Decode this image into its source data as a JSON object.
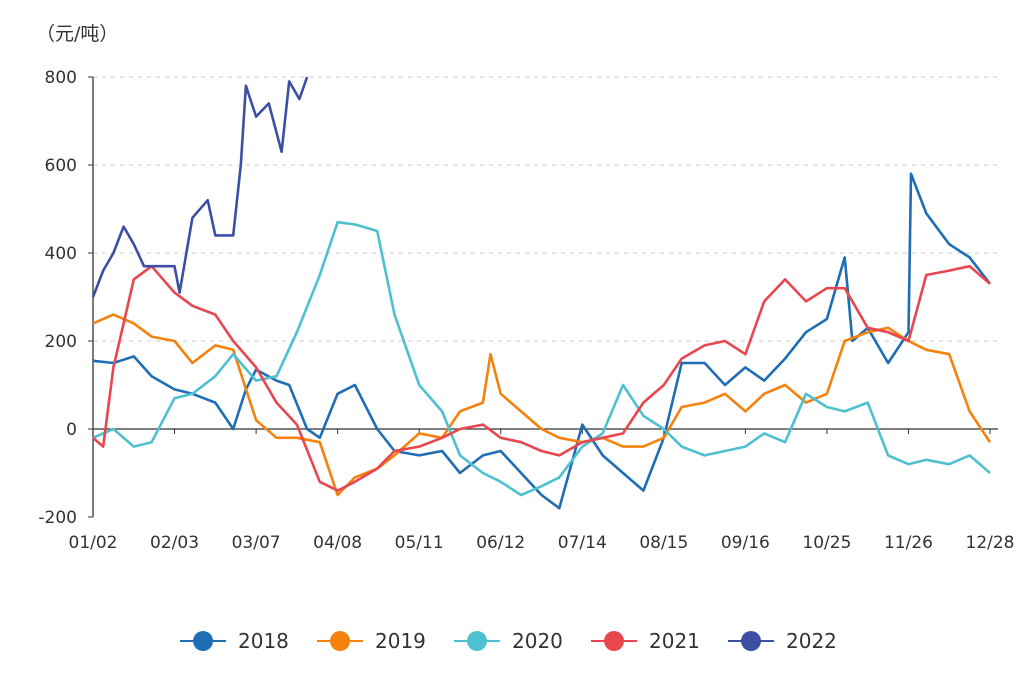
{
  "chart_data": {
    "type": "line",
    "ylabel": "（元/吨）",
    "ylim": [
      -200,
      800
    ],
    "yticks": [
      -200,
      0,
      200,
      400,
      600,
      800
    ],
    "xticks": [
      "01/02",
      "02/03",
      "03/07",
      "04/08",
      "05/11",
      "06/12",
      "07/14",
      "08/15",
      "09/16",
      "10/25",
      "11/26",
      "12/28"
    ],
    "grid": "horizontal dashed",
    "legend": "bottom",
    "series": [
      {
        "name": "2018",
        "color": "#1f6db5",
        "points": [
          [
            "01/02",
            155
          ],
          [
            "01/10",
            150
          ],
          [
            "01/18",
            165
          ],
          [
            "01/25",
            120
          ],
          [
            "02/03",
            90
          ],
          [
            "02/10",
            80
          ],
          [
            "02/19",
            60
          ],
          [
            "02/26",
            0
          ],
          [
            "03/03",
            90
          ],
          [
            "03/07",
            135
          ],
          [
            "03/15",
            110
          ],
          [
            "03/20",
            100
          ],
          [
            "03/27",
            0
          ],
          [
            "04/01",
            -20
          ],
          [
            "04/08",
            80
          ],
          [
            "04/15",
            100
          ],
          [
            "04/24",
            0
          ],
          [
            "05/01",
            -50
          ],
          [
            "05/11",
            -60
          ],
          [
            "05/20",
            -50
          ],
          [
            "05/27",
            -100
          ],
          [
            "06/05",
            -60
          ],
          [
            "06/12",
            -50
          ],
          [
            "06/20",
            -100
          ],
          [
            "06/28",
            -150
          ],
          [
            "07/05",
            -180
          ],
          [
            "07/14",
            10
          ],
          [
            "07/22",
            -60
          ],
          [
            "07/30",
            -100
          ],
          [
            "08/07",
            -140
          ],
          [
            "08/15",
            -20
          ],
          [
            "08/22",
            150
          ],
          [
            "08/31",
            150
          ],
          [
            "09/08",
            100
          ],
          [
            "09/16",
            140
          ],
          [
            "09/25",
            110
          ],
          [
            "10/05",
            160
          ],
          [
            "10/15",
            220
          ],
          [
            "10/25",
            250
          ],
          [
            "11/01",
            390
          ],
          [
            "11/04",
            200
          ],
          [
            "11/10",
            230
          ],
          [
            "11/18",
            150
          ],
          [
            "11/26",
            220
          ],
          [
            "11/27",
            580
          ],
          [
            "12/03",
            490
          ],
          [
            "12/12",
            420
          ],
          [
            "12/20",
            390
          ],
          [
            "12/28",
            330
          ]
        ]
      },
      {
        "name": "2019",
        "color": "#f5820d",
        "points": [
          [
            "01/02",
            240
          ],
          [
            "01/10",
            260
          ],
          [
            "01/18",
            240
          ],
          [
            "01/25",
            210
          ],
          [
            "02/03",
            200
          ],
          [
            "02/10",
            150
          ],
          [
            "02/19",
            190
          ],
          [
            "02/26",
            180
          ],
          [
            "03/07",
            20
          ],
          [
            "03/15",
            -20
          ],
          [
            "03/23",
            -20
          ],
          [
            "04/01",
            -30
          ],
          [
            "04/08",
            -150
          ],
          [
            "04/15",
            -110
          ],
          [
            "04/24",
            -90
          ],
          [
            "05/01",
            -60
          ],
          [
            "05/11",
            -10
          ],
          [
            "05/20",
            -20
          ],
          [
            "05/27",
            40
          ],
          [
            "06/05",
            60
          ],
          [
            "06/08",
            170
          ],
          [
            "06/12",
            80
          ],
          [
            "06/20",
            40
          ],
          [
            "06/28",
            0
          ],
          [
            "07/05",
            -20
          ],
          [
            "07/14",
            -30
          ],
          [
            "07/22",
            -20
          ],
          [
            "07/30",
            -40
          ],
          [
            "08/07",
            -40
          ],
          [
            "08/15",
            -20
          ],
          [
            "08/22",
            50
          ],
          [
            "08/31",
            60
          ],
          [
            "09/08",
            80
          ],
          [
            "09/16",
            40
          ],
          [
            "09/25",
            80
          ],
          [
            "10/05",
            100
          ],
          [
            "10/15",
            60
          ],
          [
            "10/25",
            80
          ],
          [
            "11/01",
            200
          ],
          [
            "11/10",
            220
          ],
          [
            "11/18",
            230
          ],
          [
            "11/26",
            200
          ],
          [
            "12/03",
            180
          ],
          [
            "12/12",
            170
          ],
          [
            "12/20",
            40
          ],
          [
            "12/28",
            -30
          ]
        ]
      },
      {
        "name": "2020",
        "color": "#4fc0d0",
        "points": [
          [
            "01/02",
            -20
          ],
          [
            "01/10",
            0
          ],
          [
            "01/18",
            -40
          ],
          [
            "01/25",
            -30
          ],
          [
            "02/03",
            70
          ],
          [
            "02/10",
            80
          ],
          [
            "02/19",
            120
          ],
          [
            "02/26",
            170
          ],
          [
            "03/07",
            110
          ],
          [
            "03/15",
            120
          ],
          [
            "03/23",
            220
          ],
          [
            "04/01",
            350
          ],
          [
            "04/08",
            470
          ],
          [
            "04/15",
            465
          ],
          [
            "04/24",
            450
          ],
          [
            "05/01",
            260
          ],
          [
            "05/11",
            100
          ],
          [
            "05/20",
            40
          ],
          [
            "05/27",
            -60
          ],
          [
            "06/05",
            -100
          ],
          [
            "06/12",
            -120
          ],
          [
            "06/20",
            -150
          ],
          [
            "06/28",
            -130
          ],
          [
            "07/05",
            -110
          ],
          [
            "07/14",
            -40
          ],
          [
            "07/22",
            -10
          ],
          [
            "07/30",
            100
          ],
          [
            "08/07",
            30
          ],
          [
            "08/15",
            0
          ],
          [
            "08/22",
            -40
          ],
          [
            "08/31",
            -60
          ],
          [
            "09/08",
            -50
          ],
          [
            "09/16",
            -40
          ],
          [
            "09/25",
            -10
          ],
          [
            "10/05",
            -30
          ],
          [
            "10/15",
            80
          ],
          [
            "10/25",
            50
          ],
          [
            "11/01",
            40
          ],
          [
            "11/10",
            60
          ],
          [
            "11/18",
            -60
          ],
          [
            "11/26",
            -80
          ],
          [
            "12/03",
            -70
          ],
          [
            "12/12",
            -80
          ],
          [
            "12/20",
            -60
          ],
          [
            "12/28",
            -100
          ]
        ]
      },
      {
        "name": "2021",
        "color": "#e8474f",
        "points": [
          [
            "01/02",
            -20
          ],
          [
            "01/06",
            -40
          ],
          [
            "01/10",
            140
          ],
          [
            "01/18",
            340
          ],
          [
            "01/25",
            370
          ],
          [
            "02/03",
            310
          ],
          [
            "02/10",
            280
          ],
          [
            "02/19",
            260
          ],
          [
            "02/26",
            200
          ],
          [
            "03/07",
            140
          ],
          [
            "03/15",
            60
          ],
          [
            "03/23",
            10
          ],
          [
            "04/01",
            -120
          ],
          [
            "04/08",
            -140
          ],
          [
            "04/15",
            -120
          ],
          [
            "04/24",
            -90
          ],
          [
            "05/01",
            -50
          ],
          [
            "05/11",
            -40
          ],
          [
            "05/20",
            -20
          ],
          [
            "05/27",
            0
          ],
          [
            "06/05",
            10
          ],
          [
            "06/12",
            -20
          ],
          [
            "06/20",
            -30
          ],
          [
            "06/28",
            -50
          ],
          [
            "07/05",
            -60
          ],
          [
            "07/14",
            -30
          ],
          [
            "07/22",
            -20
          ],
          [
            "07/30",
            -10
          ],
          [
            "08/07",
            60
          ],
          [
            "08/15",
            100
          ],
          [
            "08/22",
            160
          ],
          [
            "08/31",
            190
          ],
          [
            "09/08",
            200
          ],
          [
            "09/16",
            170
          ],
          [
            "09/25",
            290
          ],
          [
            "10/05",
            340
          ],
          [
            "10/15",
            290
          ],
          [
            "10/25",
            320
          ],
          [
            "11/01",
            320
          ],
          [
            "11/10",
            230
          ],
          [
            "11/18",
            220
          ],
          [
            "11/26",
            200
          ],
          [
            "12/03",
            350
          ],
          [
            "12/12",
            360
          ],
          [
            "12/20",
            370
          ],
          [
            "12/28",
            330
          ]
        ]
      },
      {
        "name": "2022",
        "color": "#3d4fa3",
        "points": [
          [
            "01/02",
            300
          ],
          [
            "01/06",
            360
          ],
          [
            "01/10",
            400
          ],
          [
            "01/14",
            460
          ],
          [
            "01/18",
            420
          ],
          [
            "01/22",
            370
          ],
          [
            "02/03",
            370
          ],
          [
            "02/05",
            310
          ],
          [
            "02/10",
            480
          ],
          [
            "02/16",
            520
          ],
          [
            "02/19",
            440
          ],
          [
            "02/26",
            440
          ],
          [
            "03/01",
            600
          ],
          [
            "03/03",
            780
          ],
          [
            "03/07",
            710
          ],
          [
            "03/12",
            740
          ],
          [
            "03/17",
            630
          ],
          [
            "03/20",
            790
          ],
          [
            "03/24",
            750
          ],
          [
            "03/27",
            800
          ]
        ]
      }
    ]
  }
}
